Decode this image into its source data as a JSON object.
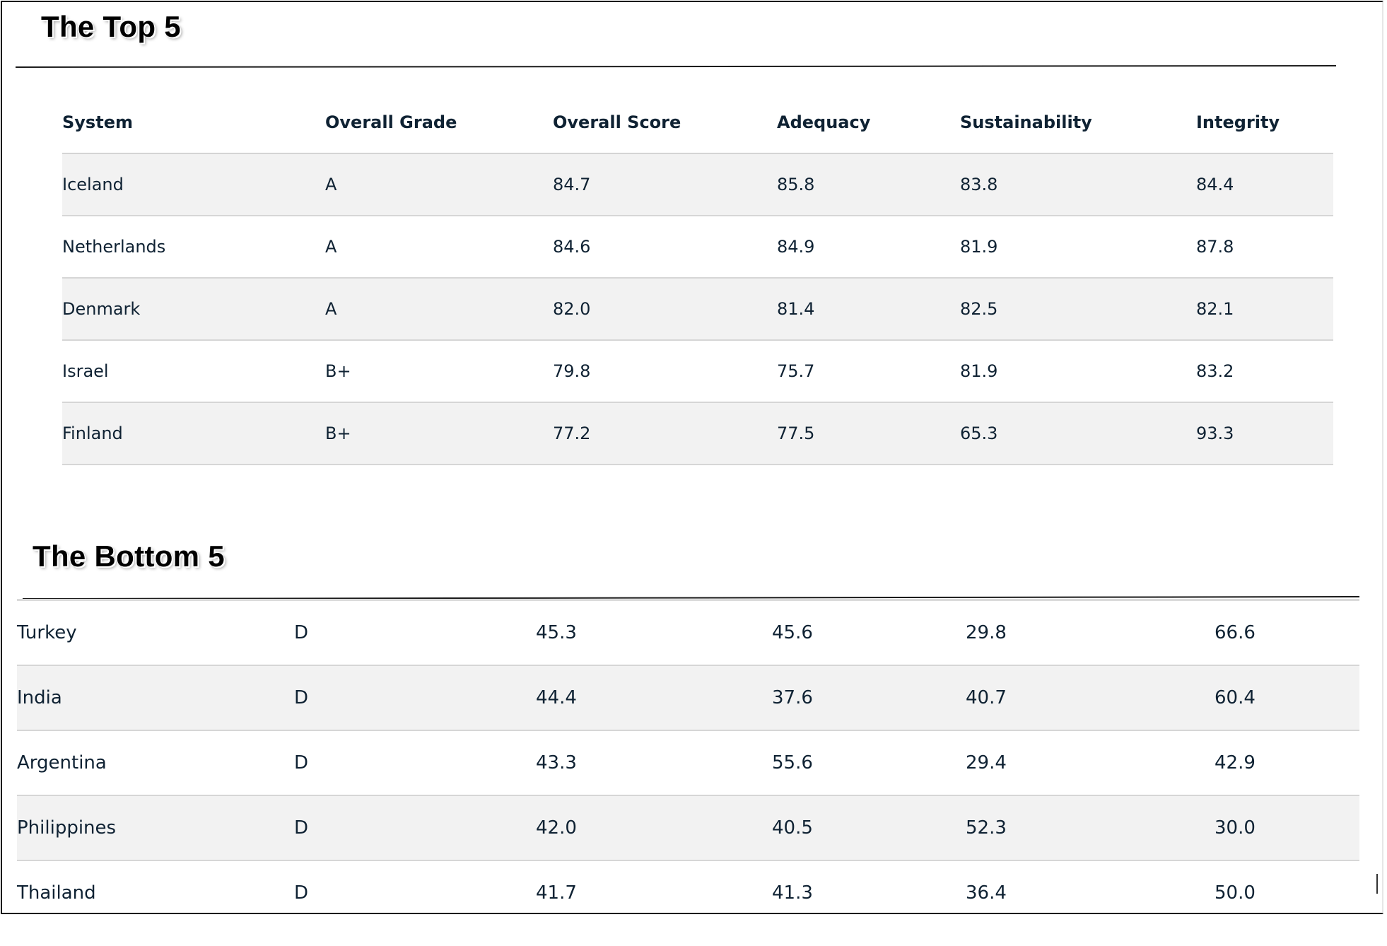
{
  "top": {
    "title": "The Top 5",
    "headers": [
      "System",
      "Overall Grade",
      "Overall Score",
      "Adequacy",
      "Sustainability",
      "Integrity"
    ],
    "rows": [
      [
        "Iceland",
        "A",
        "84.7",
        "85.8",
        "83.8",
        "84.4"
      ],
      [
        "Netherlands",
        "A",
        "84.6",
        "84.9",
        "81.9",
        "87.8"
      ],
      [
        "Denmark",
        "A",
        "82.0",
        "81.4",
        "82.5",
        "82.1"
      ],
      [
        "Israel",
        "B+",
        "79.8",
        "75.7",
        "81.9",
        "83.2"
      ],
      [
        "Finland",
        "B+",
        "77.2",
        "77.5",
        "65.3",
        "93.3"
      ]
    ]
  },
  "bottom": {
    "title": "The Bottom 5",
    "rows": [
      [
        "Turkey",
        "D",
        "45.3",
        "45.6",
        "29.8",
        "66.6"
      ],
      [
        "India",
        "D",
        "44.4",
        "37.6",
        "40.7",
        "60.4"
      ],
      [
        "Argentina",
        "D",
        "43.3",
        "55.6",
        "29.4",
        "42.9"
      ],
      [
        "Philippines",
        "D",
        "42.0",
        "40.5",
        "52.3",
        "30.0"
      ],
      [
        "Thailand",
        "D",
        "41.7",
        "41.3",
        "36.4",
        "50.0"
      ]
    ]
  }
}
